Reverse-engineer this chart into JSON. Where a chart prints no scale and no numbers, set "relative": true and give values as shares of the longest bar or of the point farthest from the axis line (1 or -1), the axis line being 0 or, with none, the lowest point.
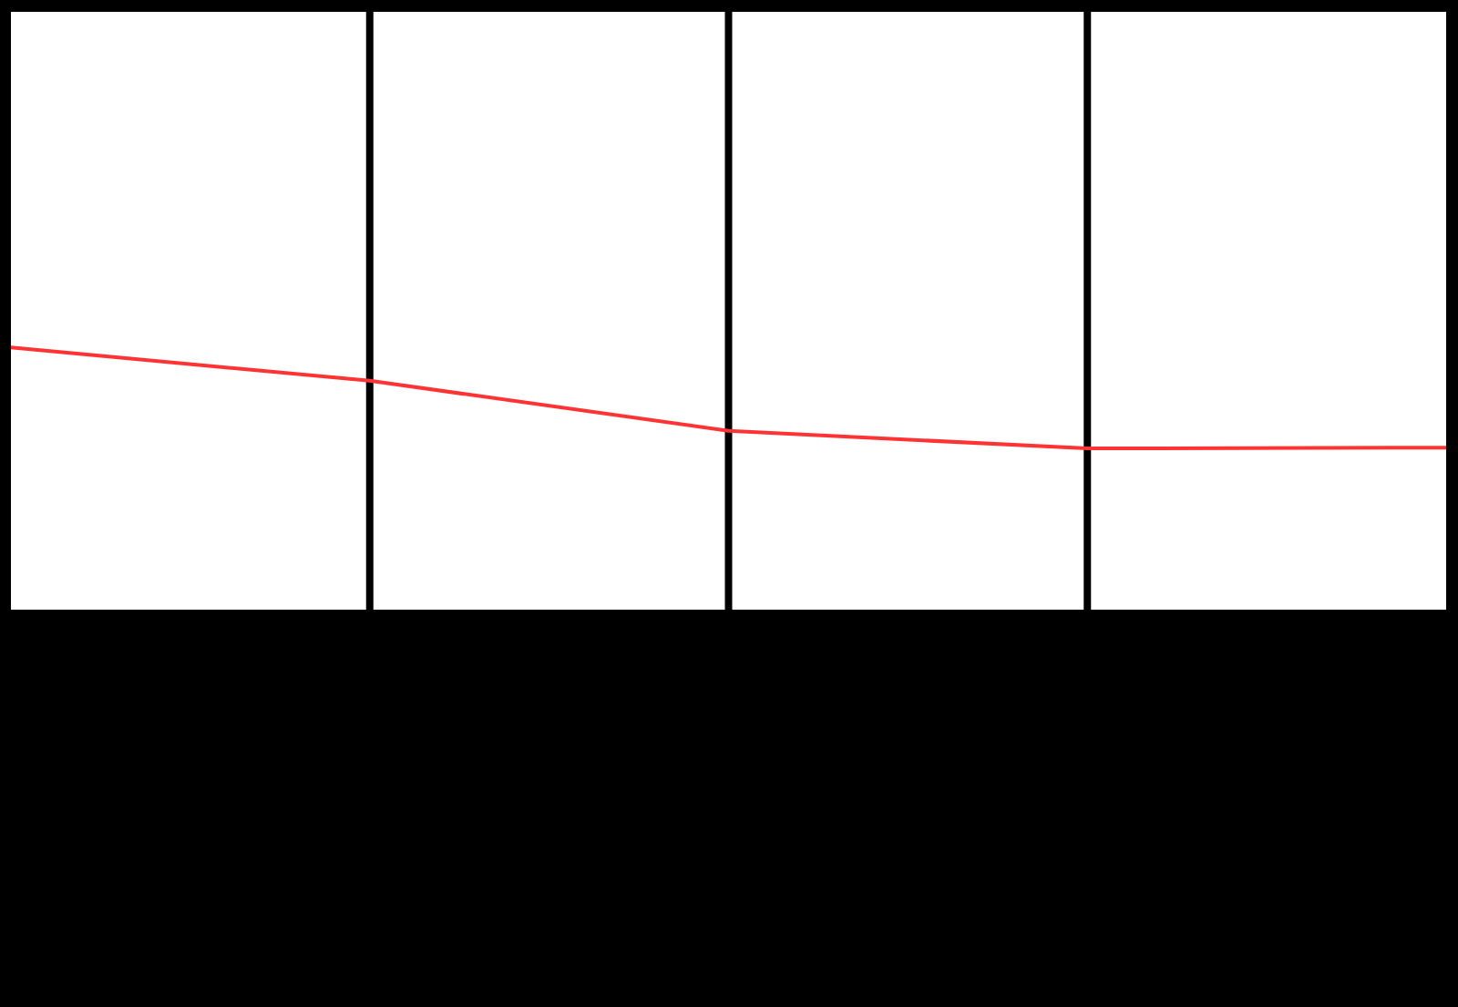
{
  "chart_data": {
    "type": "line",
    "relative": true,
    "categories": [
      null,
      null,
      null,
      null,
      null
    ],
    "grid": "x",
    "marker": "none",
    "series": [
      {
        "color": "#ff3333",
        "values": [
          1,
          0.873,
          0.682,
          0.615,
          0.618
        ]
      }
    ]
  }
}
